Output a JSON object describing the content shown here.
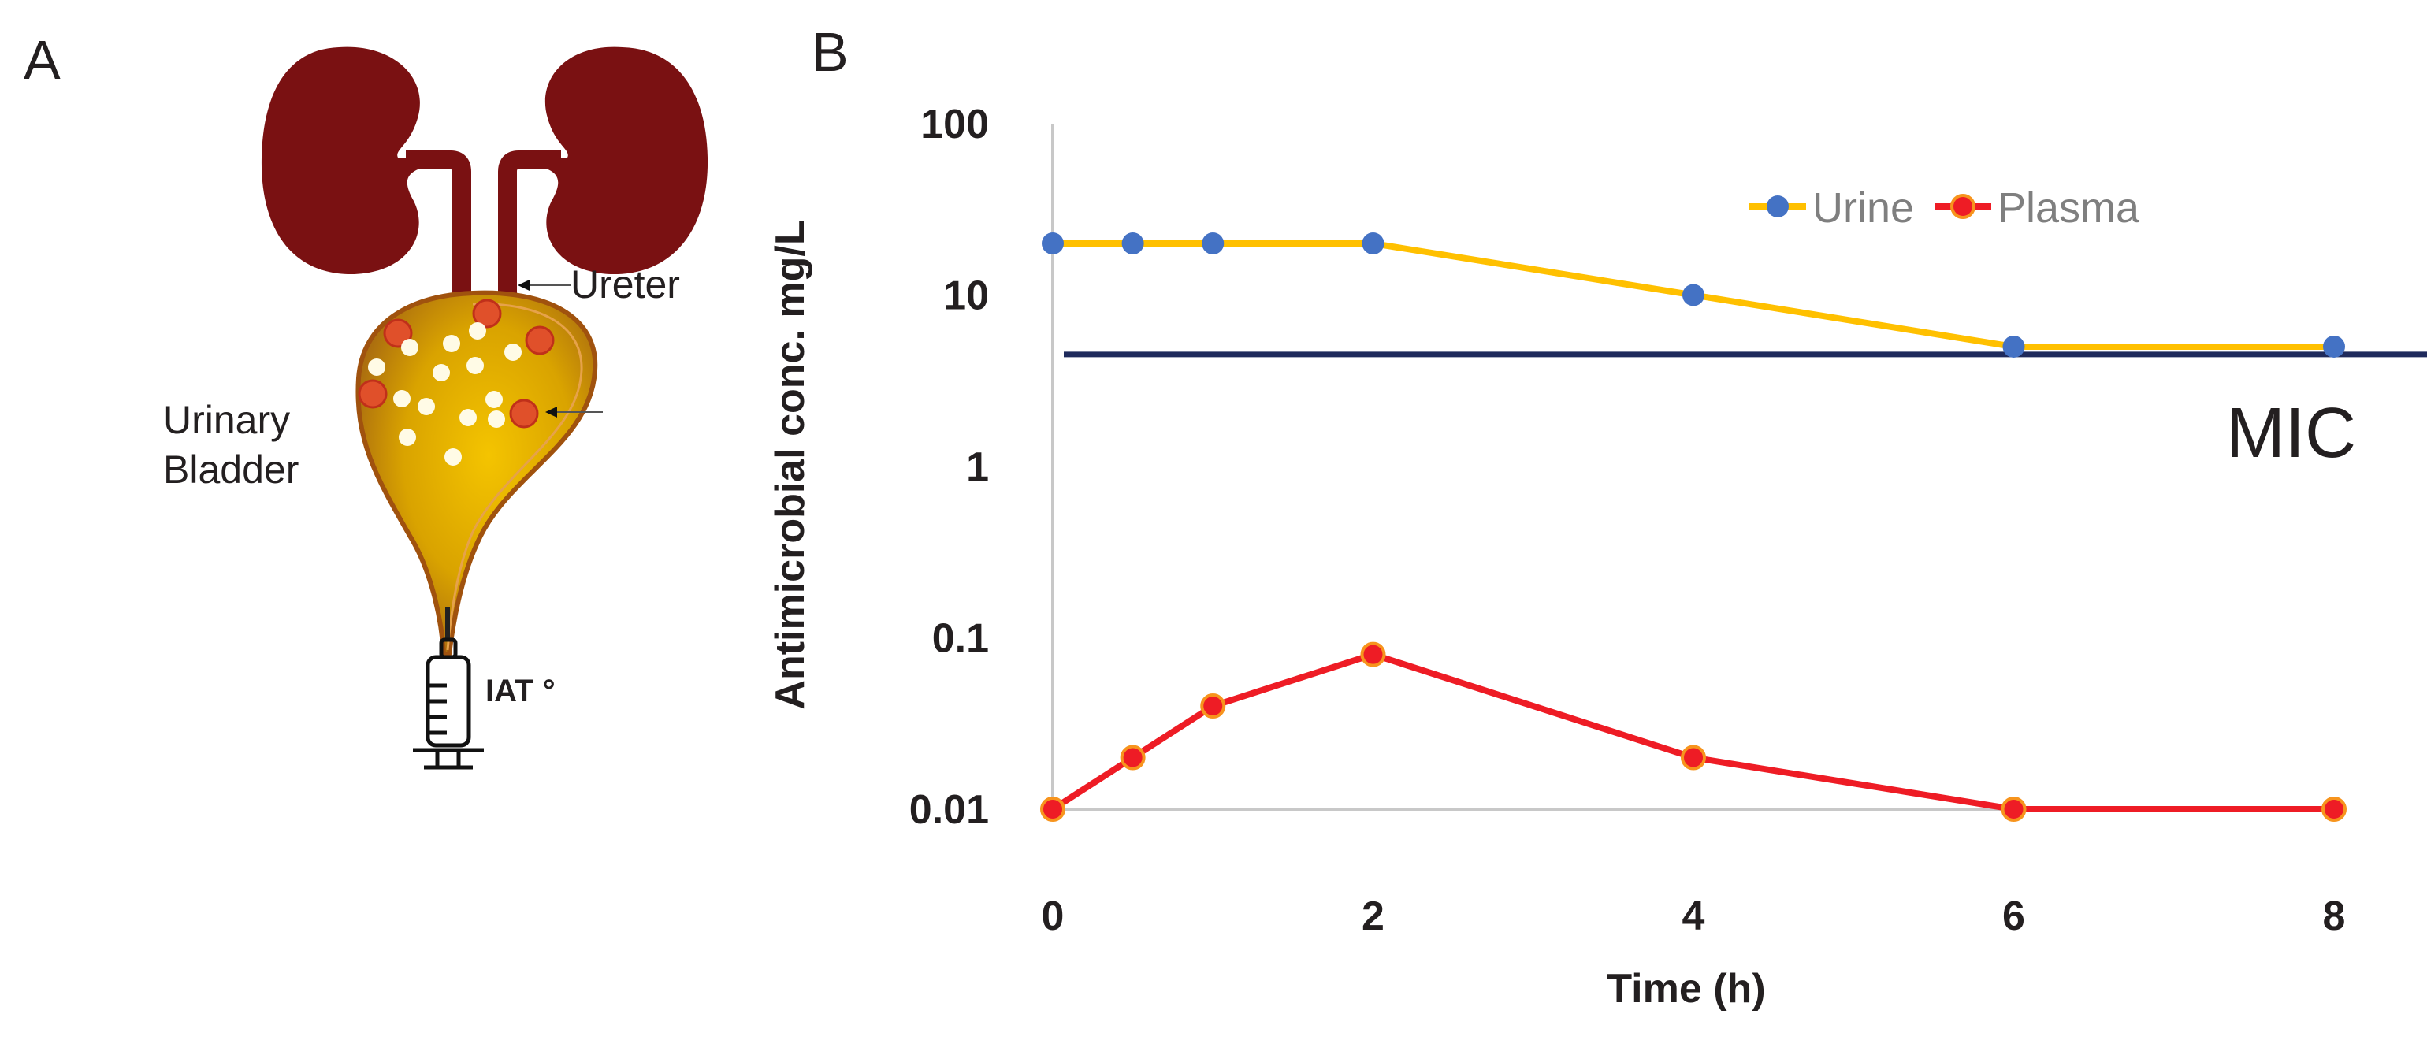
{
  "panels": {
    "a_label": "A",
    "b_label": "B"
  },
  "illustration": {
    "ureter_label": "Ureter",
    "bladder_label_line1": "Urinary",
    "bladder_label_line2": "Bladder",
    "syringe_label": "IAT °"
  },
  "chart_data": {
    "type": "line",
    "x": [
      0,
      0.5,
      1,
      2,
      4,
      6,
      8
    ],
    "series": [
      {
        "name": "Urine",
        "values": [
          20,
          20,
          20,
          20,
          10,
          5,
          5
        ],
        "line_color": "#ffc000",
        "marker_color": "#4472c4"
      },
      {
        "name": "Plasma",
        "values": [
          0.01,
          0.02,
          0.04,
          0.08,
          0.02,
          0.01,
          0.01
        ],
        "line_color": "#ee1c25",
        "marker_color": "#ee1c25",
        "marker_edge": "#f7941d"
      }
    ],
    "reference_line": {
      "label": "MIC",
      "value": 4.5,
      "color": "#1f2a5c"
    },
    "xlabel": "Time (h)",
    "ylabel": "Antimicrobial conc. mg/L",
    "yscale": "log",
    "ylim": [
      0.01,
      100
    ],
    "xlim": [
      0,
      8
    ],
    "xticks": [
      "0",
      "2",
      "4",
      "6",
      "8"
    ],
    "yticks": [
      "0.01",
      "0.1",
      "1",
      "10",
      "100"
    ],
    "legend_position": "top-right"
  }
}
